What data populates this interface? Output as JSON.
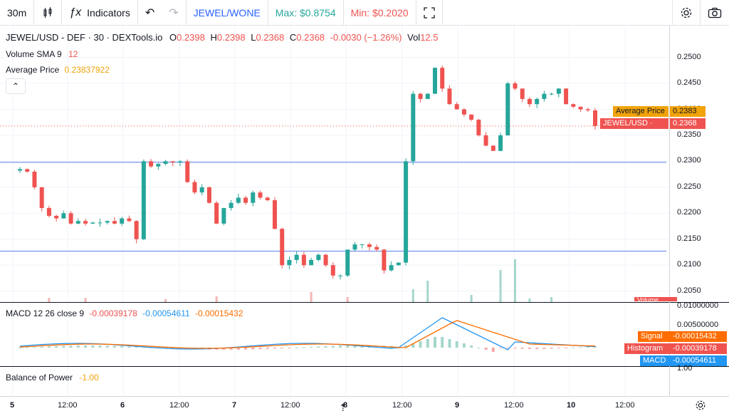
{
  "topbar": {
    "interval": "30m",
    "indicators_label": "Indicators",
    "pair_link": "JEWEL/WONE",
    "max_label": "Max: $0.8754",
    "min_label": "Min: $0.2020"
  },
  "legend": {
    "title": "JEWEL/USD - DEF · 30 · DEXTools.io",
    "o_label": "O",
    "o_value": "0.2398",
    "h_label": "H",
    "h_value": "0.2398",
    "l_label": "L",
    "l_value": "0.2368",
    "c_label": "C",
    "c_value": "0.2368",
    "change": "-0.0030 (−1.26%)",
    "vol_label": "Vol",
    "vol_value": "12.5",
    "volume_sma_label": "Volume SMA 9",
    "volume_sma_value": "12",
    "avg_price_label": "Average Price",
    "avg_price_value": "0.23837922",
    "macd_label": "MACD 12 26 close 9",
    "macd_v1": "-0.00039178",
    "macd_v2": "-0.00054611",
    "macd_v3": "-0.00015432",
    "bop_label": "Balance of Power",
    "bop_value": "-1.00"
  },
  "price_axis": {
    "ticks": [
      "0.2500",
      "0.2450",
      "0.2400",
      "0.2350",
      "0.2300",
      "0.2250",
      "0.2200",
      "0.2150",
      "0.2100",
      "0.2050"
    ],
    "avg_tag_label": "Average Price",
    "avg_tag_value": "0.2383",
    "last_tag_label": "JEWEL/USD · DEF",
    "last_tag_value": "0.2368",
    "volume_tag": "Volume"
  },
  "macd_axis": {
    "ticks": [
      "0.01000000",
      "0.00500000"
    ],
    "signal_label": "Signal",
    "signal_value": "-0.00015432",
    "hist_label": "Histogram",
    "hist_value": "-0.00039178",
    "macd_label": "MACD",
    "macd_value": "-0.00054611",
    "bop_tick": "1.00"
  },
  "time_axis": {
    "ticks": [
      "5",
      "12:00",
      "6",
      "12:00",
      "7",
      "12:00",
      "8",
      "12:00",
      "9",
      "12:00",
      "10",
      "12:00"
    ]
  },
  "colors": {
    "up": "#26a69a",
    "down": "#ef5350",
    "hline": "#5b7de8",
    "macd": "#2196f3",
    "signal": "#ff6d00",
    "avg_tag": "#f0a30a"
  },
  "chart_data": {
    "type": "candlestick",
    "series": [
      {
        "name": "JEWEL/USD - DEF",
        "description": "price candles"
      },
      {
        "name": "MACD"
      },
      {
        "name": "Signal"
      }
    ],
    "ylim": [
      0.204,
      0.252
    ],
    "x": [
      "5",
      "12:00",
      "6",
      "12:00",
      "7",
      "12:00",
      "8",
      "12:00",
      "9",
      "12:00",
      "10",
      "12:00"
    ],
    "close_path": [
      0.2285,
      0.228,
      0.225,
      0.221,
      0.2195,
      0.219,
      0.22,
      0.218,
      0.2185,
      0.218,
      0.2182,
      0.2182,
      0.2185,
      0.218,
      0.219,
      0.2185,
      0.215,
      0.23,
      0.229,
      0.2295,
      0.23,
      0.2298,
      0.23,
      0.226,
      0.224,
      0.225,
      0.222,
      0.218,
      0.221,
      0.222,
      0.223,
      0.222,
      0.224,
      0.223,
      0.2225,
      0.217,
      0.21,
      0.211,
      0.212,
      0.21,
      0.211,
      0.212,
      0.21,
      0.208,
      0.208,
      0.213,
      0.214,
      0.214,
      0.2135,
      0.213,
      0.209,
      0.21,
      0.2105,
      0.23,
      0.243,
      0.242,
      0.243,
      0.248,
      0.244,
      0.241,
      0.24,
      0.239,
      0.238,
      0.235,
      0.233,
      0.232,
      0.235,
      0.245,
      0.244,
      0.242,
      0.241,
      0.242,
      0.243,
      0.243,
      0.244,
      0.241,
      0.2405,
      0.24,
      0.2398,
      0.2368
    ]
  }
}
